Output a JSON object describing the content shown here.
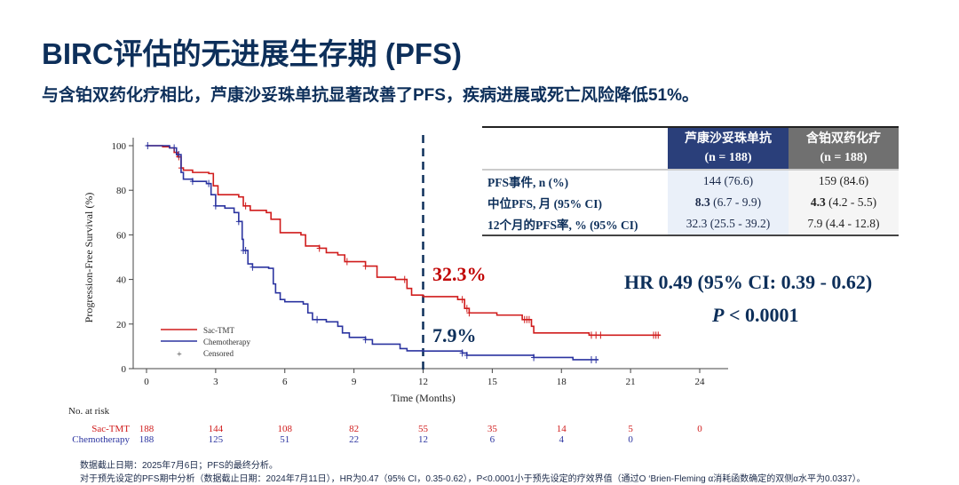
{
  "title": "BIRC评估的无进展生存期 (PFS)",
  "subtitle": "与含铂双药化疗相比，芦康沙妥珠单抗显著改善了PFS，疾病进展或死亡风险降低51%。",
  "table": {
    "headers": [
      {
        "name": "芦康沙妥珠单抗",
        "n": "(n = 188)",
        "color": "#2a3f7a"
      },
      {
        "name": "含铂双药化疗",
        "n": "(n = 188)",
        "color": "#707070"
      }
    ],
    "rows": [
      {
        "label": "PFS事件, n (%)",
        "v1": "144 (76.6)",
        "v2": "159 (84.6)"
      },
      {
        "label": "中位PFS, 月 (95% CI)",
        "v1b": "8.3",
        "v1": " (6.7 - 9.9)",
        "v2b": "4.3",
        "v2": " (4.2 - 5.5)"
      },
      {
        "label": "12个月的PFS率, % (95% CI)",
        "v1": "32.3 (25.5 - 39.2)",
        "v2": "7.9 (4.4 - 12.8)"
      }
    ]
  },
  "hr": "HR 0.49 (95% CI: 0.39 - 0.62)",
  "p_italic": "P",
  "p_rest": " < 0.0001",
  "chart_data": {
    "type": "line",
    "xlabel": "Time (Months)",
    "ylabel": "Progression-Free Survival (%)",
    "xlim": [
      0,
      24
    ],
    "ylim": [
      0,
      100
    ],
    "xticks": [
      0,
      3,
      6,
      9,
      12,
      15,
      18,
      21,
      24
    ],
    "yticks": [
      0,
      20,
      40,
      60,
      80,
      100
    ],
    "legend_position": "bottom-left",
    "censored_label": "Censored",
    "reference_line_x": 12,
    "annotations": [
      {
        "text": "32.3%",
        "color": "#c00000"
      },
      {
        "text": "7.9%",
        "color": "#0d2f5a"
      }
    ],
    "series": [
      {
        "name": "Sac-TMT",
        "color": "#d01c1c",
        "x": [
          0,
          0.7,
          1.0,
          1.2,
          1.35,
          1.5,
          1.6,
          2.0,
          2.7,
          2.9,
          3.1,
          4.0,
          4.2,
          4.5,
          5.2,
          5.4,
          5.8,
          6.7,
          6.9,
          7.5,
          7.8,
          8.3,
          8.6,
          9.5,
          10.0,
          10.8,
          11.3,
          11.5,
          12,
          13.5,
          13.8,
          14.0,
          15.2,
          16.3,
          16.7,
          16.8,
          19.2,
          22.3
        ],
        "y": [
          100,
          99.5,
          99,
          97,
          95,
          90,
          89,
          88,
          87.5,
          82,
          78,
          77,
          73,
          71,
          70,
          67,
          61,
          60,
          55,
          54,
          52,
          51,
          48,
          46,
          41,
          40,
          36,
          33,
          32.3,
          31,
          27,
          25,
          24,
          22,
          19,
          16,
          15,
          15
        ],
        "censored": [
          1.4,
          1.5,
          4.3,
          7.5,
          8.7,
          9.5,
          11.2,
          13.7,
          13.9,
          14.0,
          16.4,
          16.5,
          16.6,
          19.3,
          19.5,
          19.7,
          22.0,
          22.1,
          22.2
        ],
        "at_risk": [
          188,
          144,
          108,
          82,
          55,
          35,
          14,
          5,
          0
        ]
      },
      {
        "name": "Chemotherapy",
        "color": "#2b34a0",
        "x": [
          0,
          1.0,
          1.3,
          1.5,
          1.6,
          2.0,
          2.6,
          2.8,
          3.0,
          3.4,
          3.8,
          4.0,
          4.15,
          4.2,
          4.4,
          4.6,
          5.3,
          5.5,
          5.6,
          5.8,
          6.0,
          6.8,
          7.0,
          7.2,
          7.8,
          8.3,
          8.5,
          8.8,
          9.5,
          9.8,
          11.0,
          11.3,
          12,
          13.7,
          13.9,
          16.8,
          18.5,
          19.6
        ],
        "y": [
          100,
          99,
          96,
          88,
          85,
          84,
          83,
          78,
          73,
          72,
          70,
          66,
          58,
          53,
          47,
          45.5,
          45,
          38,
          34,
          31,
          30,
          29,
          25,
          22,
          21,
          19,
          16,
          14,
          13,
          11,
          9,
          8,
          7.9,
          7,
          6,
          5,
          4,
          4
        ],
        "censored": [
          0.05,
          1.2,
          1.4,
          2.0,
          2.7,
          3.0,
          4.0,
          4.2,
          4.3,
          4.6,
          7.4,
          9.5,
          13.7,
          13.9,
          16.8,
          19.3,
          19.5
        ],
        "at_risk": [
          188,
          125,
          51,
          22,
          12,
          6,
          4,
          0
        ]
      }
    ],
    "at_risk_title": "No. at risk"
  },
  "footnotes": [
    "数据截止日期：2025年7月6日；PFS的最终分析。",
    "对于预先设定的PFS期中分析（数据截止日期：2024年7月11日），HR为0.47（95% CI，0.35-0.62），P<0.0001小于预先设定的疗效界值（通过O ‘Brien-Fleming α消耗函数确定的双侧α水平为0.0337）。"
  ]
}
